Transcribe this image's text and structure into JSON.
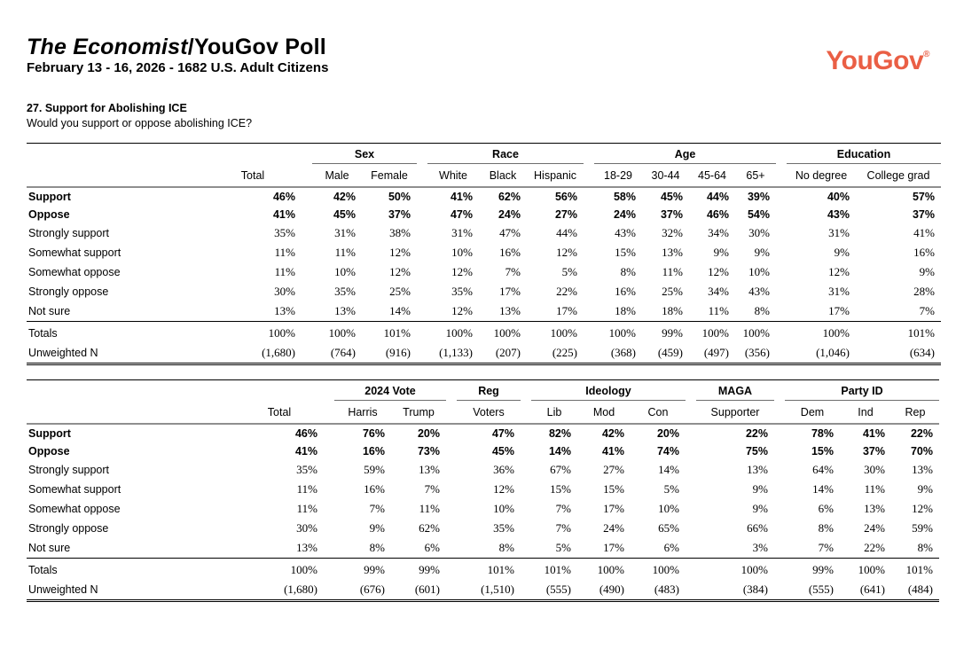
{
  "header": {
    "title_italic": "The Economist",
    "title_rest": "/YouGov Poll",
    "subtitle": "February 13 - 16, 2026 - 1682 U.S. Adult Citizens",
    "logo_text": "YouGov",
    "logo_reg": "®",
    "logo_color": "#EA5F45"
  },
  "question": {
    "number_title": "27. Support for Abolishing ICE",
    "text": "Would you support or oppose abolishing ICE?"
  },
  "tables": [
    {
      "name": "demographics-table",
      "groups": [
        {
          "label": "",
          "cols": [
            "Total"
          ]
        },
        {
          "label": "Sex",
          "cols": [
            "Male",
            "Female"
          ]
        },
        {
          "label": "Race",
          "cols": [
            "White",
            "Black",
            "Hispanic"
          ]
        },
        {
          "label": "Age",
          "cols": [
            "18-29",
            "30-44",
            "45-64",
            "65+"
          ]
        },
        {
          "label": "Education",
          "cols": [
            "No degree",
            "College grad"
          ]
        }
      ],
      "rows": [
        {
          "label": "Support",
          "bold": true,
          "values": [
            "46%",
            "42%",
            "50%",
            "41%",
            "62%",
            "56%",
            "58%",
            "45%",
            "44%",
            "39%",
            "40%",
            "57%"
          ]
        },
        {
          "label": "Oppose",
          "bold": true,
          "values": [
            "41%",
            "45%",
            "37%",
            "47%",
            "24%",
            "27%",
            "24%",
            "37%",
            "46%",
            "54%",
            "43%",
            "37%"
          ]
        },
        {
          "label": "Strongly support",
          "bold": false,
          "values": [
            "35%",
            "31%",
            "38%",
            "31%",
            "47%",
            "44%",
            "43%",
            "32%",
            "34%",
            "30%",
            "31%",
            "41%"
          ]
        },
        {
          "label": "Somewhat support",
          "bold": false,
          "values": [
            "11%",
            "11%",
            "12%",
            "10%",
            "16%",
            "12%",
            "15%",
            "13%",
            "9%",
            "9%",
            "9%",
            "16%"
          ]
        },
        {
          "label": "Somewhat oppose",
          "bold": false,
          "values": [
            "11%",
            "10%",
            "12%",
            "12%",
            "7%",
            "5%",
            "8%",
            "11%",
            "12%",
            "10%",
            "12%",
            "9%"
          ]
        },
        {
          "label": "Strongly oppose",
          "bold": false,
          "values": [
            "30%",
            "35%",
            "25%",
            "35%",
            "17%",
            "22%",
            "16%",
            "25%",
            "34%",
            "43%",
            "31%",
            "28%"
          ]
        },
        {
          "label": "Not sure",
          "bold": false,
          "values": [
            "13%",
            "13%",
            "14%",
            "12%",
            "13%",
            "17%",
            "18%",
            "18%",
            "11%",
            "8%",
            "17%",
            "7%"
          ]
        }
      ],
      "totals": {
        "label": "Totals",
        "values": [
          "100%",
          "100%",
          "101%",
          "100%",
          "100%",
          "100%",
          "100%",
          "99%",
          "100%",
          "100%",
          "100%",
          "101%"
        ]
      },
      "unweighted": {
        "label": "Unweighted N",
        "values": [
          "(1,680)",
          "(764)",
          "(916)",
          "(1,133)",
          "(207)",
          "(225)",
          "(368)",
          "(459)",
          "(497)",
          "(356)",
          "(1,046)",
          "(634)"
        ]
      }
    },
    {
      "name": "politics-table",
      "groups": [
        {
          "label": "",
          "cols": [
            "Total"
          ]
        },
        {
          "label": "2024 Vote",
          "cols": [
            "Harris",
            "Trump"
          ]
        },
        {
          "label": "Reg",
          "cols": [
            "Voters"
          ]
        },
        {
          "label": "Ideology",
          "cols": [
            "Lib",
            "Mod",
            "Con"
          ]
        },
        {
          "label": "MAGA",
          "cols": [
            "Supporter"
          ]
        },
        {
          "label": "Party ID",
          "cols": [
            "Dem",
            "Ind",
            "Rep"
          ]
        }
      ],
      "rows": [
        {
          "label": "Support",
          "bold": true,
          "values": [
            "46%",
            "76%",
            "20%",
            "47%",
            "82%",
            "42%",
            "20%",
            "22%",
            "78%",
            "41%",
            "22%"
          ]
        },
        {
          "label": "Oppose",
          "bold": true,
          "values": [
            "41%",
            "16%",
            "73%",
            "45%",
            "14%",
            "41%",
            "74%",
            "75%",
            "15%",
            "37%",
            "70%"
          ]
        },
        {
          "label": "Strongly support",
          "bold": false,
          "values": [
            "35%",
            "59%",
            "13%",
            "36%",
            "67%",
            "27%",
            "14%",
            "13%",
            "64%",
            "30%",
            "13%"
          ]
        },
        {
          "label": "Somewhat support",
          "bold": false,
          "values": [
            "11%",
            "16%",
            "7%",
            "12%",
            "15%",
            "15%",
            "5%",
            "9%",
            "14%",
            "11%",
            "9%"
          ]
        },
        {
          "label": "Somewhat oppose",
          "bold": false,
          "values": [
            "11%",
            "7%",
            "11%",
            "10%",
            "7%",
            "17%",
            "10%",
            "9%",
            "6%",
            "13%",
            "12%"
          ]
        },
        {
          "label": "Strongly oppose",
          "bold": false,
          "values": [
            "30%",
            "9%",
            "62%",
            "35%",
            "7%",
            "24%",
            "65%",
            "66%",
            "8%",
            "24%",
            "59%"
          ]
        },
        {
          "label": "Not sure",
          "bold": false,
          "values": [
            "13%",
            "8%",
            "6%",
            "8%",
            "5%",
            "17%",
            "6%",
            "3%",
            "7%",
            "22%",
            "8%"
          ]
        }
      ],
      "totals": {
        "label": "Totals",
        "values": [
          "100%",
          "99%",
          "99%",
          "101%",
          "101%",
          "100%",
          "100%",
          "100%",
          "99%",
          "100%",
          "101%"
        ]
      },
      "unweighted": {
        "label": "Unweighted N",
        "values": [
          "(1,680)",
          "(676)",
          "(601)",
          "(1,510)",
          "(555)",
          "(490)",
          "(483)",
          "(384)",
          "(555)",
          "(641)",
          "(484)"
        ]
      }
    }
  ]
}
